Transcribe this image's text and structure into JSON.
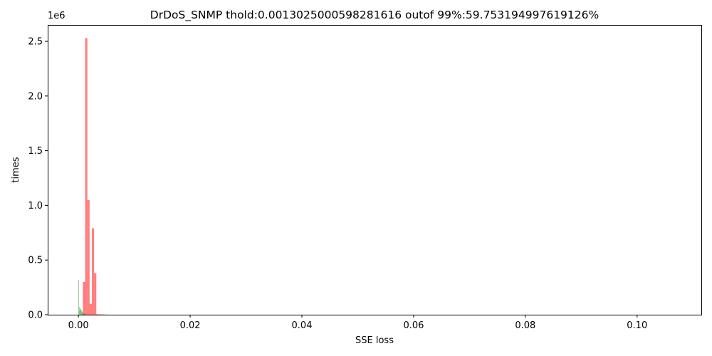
{
  "chart_data": {
    "type": "bar",
    "title": "DrDoS_SNMP thold:0.0013025000598281616 outof 99%:59.753194997619126%",
    "xlabel": "SSE loss",
    "ylabel": "times",
    "y_offset_label": "1e6",
    "xlim": [
      -0.0055,
      0.1115
    ],
    "ylim": [
      0,
      2.65
    ],
    "xticks": [
      0.0,
      0.02,
      0.04,
      0.06,
      0.08,
      0.1
    ],
    "xtick_labels": [
      "0.00",
      "0.02",
      "0.04",
      "0.06",
      "0.08",
      "0.10"
    ],
    "yticks": [
      0.0,
      0.5,
      1.0,
      1.5,
      2.0,
      2.5
    ],
    "ytick_labels": [
      "0.0",
      "0.5",
      "1.0",
      "1.5",
      "2.0",
      "2.5"
    ],
    "series": [
      {
        "color": "#ff0000",
        "alpha": 0.5,
        "bin_width": 0.0004,
        "bin_starts": [
          0.0008,
          0.0012,
          0.0016,
          0.002,
          0.0024,
          0.0028,
          0.0032,
          0.0036,
          0.004,
          0.0044,
          0.0048
        ],
        "values": [
          0.3,
          2.53,
          1.05,
          0.1,
          0.79,
          0.38,
          0.005,
          0.003,
          0.002,
          0.001,
          0.001
        ]
      },
      {
        "color": "#008000",
        "alpha": 0.5,
        "bin_width": 0.0001,
        "bin_starts": [
          0.0,
          0.0001,
          0.0002,
          0.0003,
          0.0004,
          0.0005,
          0.0006,
          0.0007,
          0.0008,
          0.0009,
          0.001,
          0.0012,
          0.0015,
          0.002,
          0.003,
          0.004,
          0.0045,
          0.005
        ],
        "values": [
          0.32,
          0.07,
          0.04,
          0.06,
          0.05,
          0.04,
          0.03,
          0.02,
          0.015,
          0.01,
          0.008,
          0.006,
          0.004,
          0.003,
          0.002,
          0.004,
          0.005,
          0.003
        ]
      }
    ]
  }
}
